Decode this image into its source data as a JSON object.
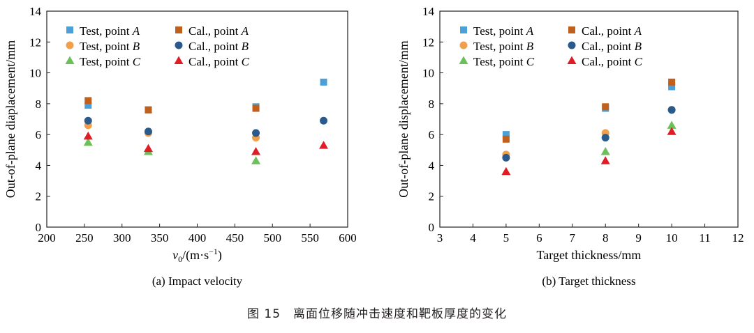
{
  "figure_caption": "图 15　离面位移随冲击速度和靶板厚度的变化",
  "legend": {
    "test_a": {
      "prefix": "Test, point ",
      "point": "A"
    },
    "cal_a": {
      "prefix": "Cal., point ",
      "point": "A"
    },
    "test_b": {
      "prefix": "Test, point ",
      "point": "B"
    },
    "cal_b": {
      "prefix": "Cal., point ",
      "point": "B"
    },
    "test_c": {
      "prefix": "Test, point ",
      "point": "C"
    },
    "cal_c": {
      "prefix": "Cal., point ",
      "point": "C"
    }
  },
  "colors": {
    "test_a": "#4aa0d8",
    "cal_a": "#c0601c",
    "test_b": "#f0a04a",
    "cal_b": "#2a5a8c",
    "test_c": "#6cc05a",
    "cal_c": "#e01c24",
    "axis": "#231f20"
  },
  "chart_data": [
    {
      "type": "scatter",
      "subtitle": "(a) Impact velocity",
      "xlabel_main": "v",
      "xlabel_sub": "0",
      "xlabel_units": "/(m·s",
      "xlabel_sup": "−1",
      "xlabel_close": ")",
      "ylabel": "Out-of-plane diaplacement/mm",
      "xlim": [
        200,
        600
      ],
      "ylim": [
        0,
        14
      ],
      "xticks": [
        "200",
        "250",
        "300",
        "350",
        "400",
        "450",
        "500",
        "550",
        "600"
      ],
      "yticks": [
        "0",
        "2",
        "4",
        "6",
        "8",
        "10",
        "12",
        "14"
      ],
      "series": [
        {
          "key": "test_a",
          "marker": "square",
          "x": [
            255,
            335,
            478,
            568
          ],
          "y": [
            7.9,
            7.6,
            7.8,
            9.4
          ]
        },
        {
          "key": "cal_a",
          "marker": "square",
          "x": [
            255,
            335,
            478
          ],
          "y": [
            8.2,
            7.6,
            7.7
          ]
        },
        {
          "key": "test_b",
          "marker": "circle",
          "x": [
            255,
            335,
            478
          ],
          "y": [
            6.6,
            6.1,
            5.8
          ]
        },
        {
          "key": "cal_b",
          "marker": "circle",
          "x": [
            255,
            335,
            478,
            568
          ],
          "y": [
            6.9,
            6.2,
            6.1,
            6.9
          ]
        },
        {
          "key": "test_c",
          "marker": "triangle",
          "x": [
            255,
            335,
            478
          ],
          "y": [
            5.5,
            4.9,
            4.3
          ]
        },
        {
          "key": "cal_c",
          "marker": "triangle",
          "x": [
            255,
            335,
            478,
            568
          ],
          "y": [
            5.9,
            5.1,
            4.9,
            5.3
          ]
        }
      ]
    },
    {
      "type": "scatter",
      "subtitle": "(b) Target thickness",
      "xlabel": "Target thickness/mm",
      "ylabel": "Out-of-plane displacement/mm",
      "xlim": [
        3,
        12
      ],
      "ylim": [
        0,
        14
      ],
      "xticks": [
        "3",
        "4",
        "5",
        "6",
        "7",
        "8",
        "9",
        "10",
        "11",
        "12"
      ],
      "yticks": [
        "0",
        "2",
        "4",
        "6",
        "8",
        "10",
        "12",
        "14"
      ],
      "series": [
        {
          "key": "test_a",
          "marker": "square",
          "x": [
            5,
            8,
            10
          ],
          "y": [
            6.0,
            7.7,
            9.1
          ]
        },
        {
          "key": "cal_a",
          "marker": "square",
          "x": [
            5,
            8,
            10
          ],
          "y": [
            5.7,
            7.8,
            9.4
          ]
        },
        {
          "key": "test_b",
          "marker": "circle",
          "x": [
            5,
            8,
            10
          ],
          "y": [
            4.7,
            6.1,
            7.6
          ]
        },
        {
          "key": "cal_b",
          "marker": "circle",
          "x": [
            5,
            8,
            10
          ],
          "y": [
            4.5,
            5.8,
            7.6
          ]
        },
        {
          "key": "test_c",
          "marker": "triangle",
          "x": [
            8,
            10
          ],
          "y": [
            4.9,
            6.6
          ]
        },
        {
          "key": "cal_c",
          "marker": "triangle",
          "x": [
            5,
            8,
            10
          ],
          "y": [
            3.6,
            4.3,
            6.2
          ]
        }
      ]
    }
  ]
}
